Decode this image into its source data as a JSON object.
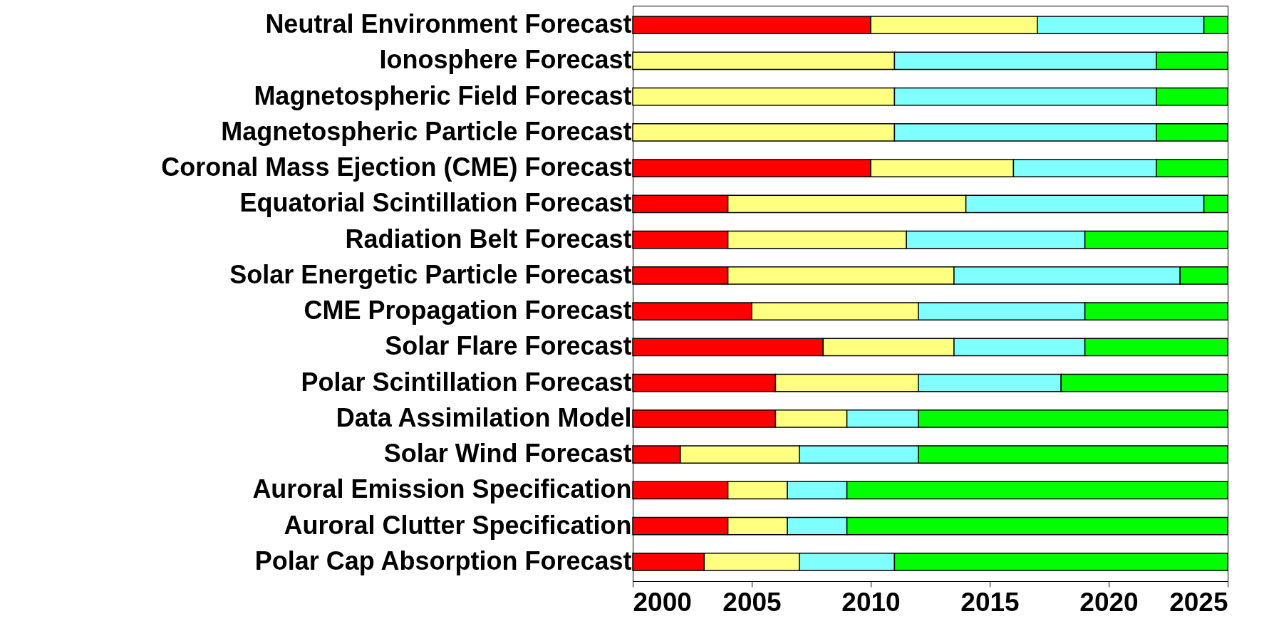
{
  "chart_data": {
    "type": "bar",
    "orientation": "horizontal",
    "categories": [
      "Neutral Environment Forecast",
      "Ionosphere Forecast",
      "Magnetospheric Field Forecast",
      "Magnetospheric Particle Forecast",
      "Coronal Mass Ejection (CME) Forecast",
      "Equatorial Scintillation Forecast",
      "Radiation Belt Forecast",
      "Solar Energetic Particle Forecast",
      "CME Propagation Forecast",
      "Solar Flare Forecast",
      "Polar Scintillation Forecast",
      "Data Assimilation Model",
      "Solar Wind Forecast",
      "Auroral Emission Specification",
      "Auroral Clutter Specification",
      "Polar Cap Absorption Forecast"
    ],
    "series": [
      {
        "color": "#ff0000",
        "base": [
          2000,
          null,
          null,
          null,
          2000,
          2000,
          2000,
          2000,
          2000,
          2000,
          2000,
          2000,
          2000,
          2000,
          2000,
          2000
        ],
        "values": [
          10,
          null,
          null,
          null,
          10,
          4,
          4,
          4,
          5,
          8,
          6,
          6,
          2,
          4,
          4,
          3
        ]
      },
      {
        "color": "#ffff80",
        "base": [
          2010,
          2000,
          2000,
          2000,
          2010,
          2004,
          2004,
          2004,
          2005,
          2008,
          2006,
          2006,
          2002,
          2004,
          2004,
          2003
        ],
        "values": [
          7,
          11,
          11,
          11,
          6,
          10,
          7.5,
          9.5,
          7,
          5.5,
          6,
          3,
          5,
          2.5,
          2.5,
          4
        ]
      },
      {
        "color": "#80ffff",
        "base": [
          2017,
          2011,
          2011,
          2011,
          2016,
          2014,
          2011.5,
          2013.5,
          2012,
          2013.5,
          2012,
          2009,
          2007,
          2006.5,
          2006.5,
          2007
        ],
        "values": [
          7,
          11,
          11,
          11,
          6,
          10,
          7.5,
          9.5,
          7,
          5.5,
          6,
          3,
          5,
          2.5,
          2.5,
          4
        ]
      },
      {
        "color": "#00ff00",
        "base": [
          2024,
          2022,
          2022,
          2022,
          2022,
          2024,
          2019,
          2023,
          2019,
          2019,
          2018,
          2012,
          2012,
          2009,
          2009,
          2011
        ],
        "values": [
          1,
          3,
          3,
          3,
          3,
          1,
          6,
          2,
          6,
          6,
          7,
          13,
          13,
          16,
          16,
          14
        ]
      }
    ],
    "xlim": [
      2000,
      2025
    ],
    "xticks": [
      2000,
      2005,
      2010,
      2015,
      2020,
      2025
    ],
    "grid": false,
    "legend": false
  }
}
